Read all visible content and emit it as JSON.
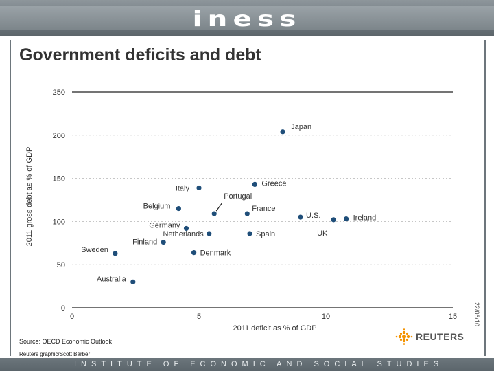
{
  "header": {
    "logo": "iness"
  },
  "footer": {
    "text": "INSTITUTE OF ECONOMIC AND SOCIAL STUDIES"
  },
  "chart_data": {
    "type": "scatter",
    "title": "Government deficits and debt",
    "xlabel": "2011 deficit as % of GDP",
    "ylabel": "2011 gross debt as % of GDP",
    "xlim": [
      0,
      15
    ],
    "ylim": [
      0,
      250
    ],
    "xticks": [
      0,
      5,
      10,
      15
    ],
    "yticks": [
      0,
      50,
      100,
      150,
      200,
      250
    ],
    "points": [
      {
        "name": "Japan",
        "x": 8.3,
        "y": 204
      },
      {
        "name": "Greece",
        "x": 7.2,
        "y": 143
      },
      {
        "name": "Italy",
        "x": 5.0,
        "y": 139
      },
      {
        "name": "Portugal",
        "x": 5.6,
        "y": 109
      },
      {
        "name": "Belgium",
        "x": 4.2,
        "y": 115
      },
      {
        "name": "France",
        "x": 6.9,
        "y": 109
      },
      {
        "name": "U.S.",
        "x": 9.0,
        "y": 105
      },
      {
        "name": "UK",
        "x": 10.3,
        "y": 102
      },
      {
        "name": "Ireland",
        "x": 10.8,
        "y": 103
      },
      {
        "name": "Germany",
        "x": 4.5,
        "y": 92
      },
      {
        "name": "Netherlands",
        "x": 5.4,
        "y": 86
      },
      {
        "name": "Spain",
        "x": 7.0,
        "y": 86
      },
      {
        "name": "Finland",
        "x": 3.6,
        "y": 76
      },
      {
        "name": "Denmark",
        "x": 4.8,
        "y": 64
      },
      {
        "name": "Sweden",
        "x": 1.7,
        "y": 63
      },
      {
        "name": "Australia",
        "x": 2.4,
        "y": 30
      }
    ],
    "source": "Source: OECD Economic Outlook",
    "credit": "Reuters graphic/Scott Barber",
    "date": "22/06/10",
    "agency": "REUTERS",
    "colors": {
      "point": "#1f4e79",
      "grid": "#bfbfbf",
      "text": "#333333"
    }
  }
}
